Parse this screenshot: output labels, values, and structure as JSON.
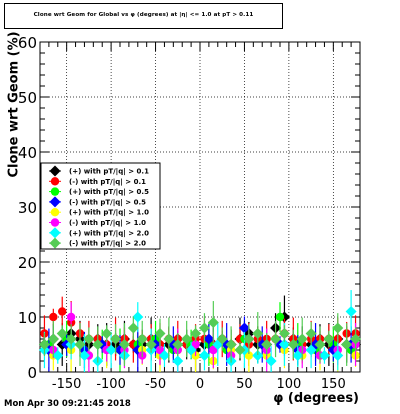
{
  "title": "Clone wrt Geom for Global vs φ (degrees) at |η| <= 1.0 at pT > 0.11",
  "footer": "Mon Apr 30 09:21:45 2018",
  "chart_data": {
    "type": "scatter",
    "title": "Clone wrt Geom for Global vs φ (degrees) at |η| <= 1.0 at pT > 0.11",
    "xlabel": "φ (degrees)",
    "ylabel": "Clone wrt Geom (%)",
    "xlim": [
      -180,
      180
    ],
    "ylim": [
      0,
      60
    ],
    "xticks": [
      -150,
      -100,
      -50,
      0,
      50,
      100,
      150
    ],
    "yticks": [
      0,
      10,
      20,
      30,
      40,
      50,
      60
    ],
    "grid": true,
    "legend_position": "left",
    "series": [
      {
        "name": "(+) with pT/|q| > 0.1",
        "color": "#000000",
        "marker": "diamond",
        "x": [
          -175,
          -165,
          -155,
          -145,
          -135,
          -125,
          -115,
          -105,
          -95,
          -85,
          -75,
          -65,
          -55,
          -45,
          -35,
          -25,
          -15,
          -5,
          5,
          15,
          25,
          35,
          45,
          55,
          65,
          75,
          85,
          95,
          105,
          115,
          125,
          135,
          145,
          155,
          165,
          175
        ],
        "y": [
          5,
          6,
          5,
          7,
          6,
          5,
          6,
          5,
          5,
          6,
          5,
          5,
          6,
          5,
          5,
          6,
          5,
          4,
          5,
          5,
          6,
          5,
          6,
          7,
          5,
          5,
          8,
          10,
          6,
          5,
          5,
          6,
          5,
          6,
          5,
          5
        ]
      },
      {
        "name": "(-) with pT/|q| > 0.1",
        "color": "#ff0000",
        "marker": "circle",
        "x": [
          -175,
          -165,
          -155,
          -145,
          -135,
          -125,
          -115,
          -105,
          -95,
          -85,
          -75,
          -65,
          -55,
          -45,
          -35,
          -25,
          -15,
          -5,
          5,
          15,
          25,
          35,
          45,
          55,
          65,
          75,
          85,
          95,
          105,
          115,
          125,
          135,
          145,
          155,
          165,
          175
        ],
        "y": [
          7,
          10,
          11,
          9,
          7,
          6,
          6,
          5,
          6,
          6,
          5,
          6,
          6,
          5,
          6,
          6,
          5,
          6,
          6,
          5,
          6,
          5,
          6,
          5,
          6,
          6,
          6,
          7,
          6,
          5,
          6,
          6,
          6,
          6,
          7,
          7
        ]
      },
      {
        "name": "(+) with pT/|q| > 0.5",
        "color": "#00ff00",
        "marker": "circle",
        "x": [
          -170,
          -150,
          -130,
          -110,
          -90,
          -70,
          -50,
          -30,
          -10,
          10,
          30,
          50,
          70,
          90,
          110,
          130,
          150,
          170
        ],
        "y": [
          5,
          6,
          4,
          5,
          4,
          5,
          6,
          4,
          5,
          5,
          4,
          6,
          5,
          10,
          5,
          4,
          5,
          4
        ]
      },
      {
        "name": "(-) with pT/|q| > 0.5",
        "color": "#0000ff",
        "marker": "diamond",
        "x": [
          -170,
          -150,
          -130,
          -110,
          -90,
          -70,
          -50,
          -30,
          -10,
          10,
          30,
          50,
          70,
          90,
          110,
          130,
          150,
          170
        ],
        "y": [
          4,
          5,
          4,
          5,
          4,
          4,
          5,
          5,
          4,
          6,
          5,
          8,
          5,
          5,
          4,
          5,
          4,
          5
        ]
      },
      {
        "name": "(+) with pT/|q| > 1.0",
        "color": "#ffff00",
        "marker": "circle",
        "x": [
          -165,
          -145,
          -125,
          -105,
          -85,
          -65,
          -45,
          -25,
          -5,
          15,
          35,
          55,
          75,
          95,
          115,
          135,
          155,
          175
        ],
        "y": [
          3,
          4,
          3,
          4,
          3,
          4,
          3,
          4,
          3,
          2,
          4,
          3,
          3,
          4,
          3,
          3,
          4,
          3
        ]
      },
      {
        "name": "(-) with pT/|q| > 1.0",
        "color": "#ff00ff",
        "marker": "circle",
        "x": [
          -165,
          -145,
          -125,
          -105,
          -85,
          -65,
          -45,
          -25,
          -5,
          15,
          35,
          55,
          75,
          95,
          115,
          135,
          155,
          175
        ],
        "y": [
          4,
          10,
          3,
          4,
          4,
          3,
          4,
          4,
          5,
          4,
          3,
          6,
          4,
          5,
          4,
          3,
          4,
          5
        ]
      },
      {
        "name": "(+) with pT/|q| > 2.0",
        "color": "#00ffff",
        "marker": "diamond",
        "x": [
          -175,
          -160,
          -145,
          -130,
          -115,
          -100,
          -85,
          -70,
          -55,
          -40,
          -25,
          -10,
          5,
          20,
          35,
          50,
          65,
          80,
          95,
          110,
          125,
          140,
          155,
          170
        ],
        "y": [
          4,
          3,
          5,
          3,
          2,
          4,
          3,
          10,
          4,
          3,
          2,
          4,
          3,
          5,
          2,
          4,
          3,
          2,
          5,
          3,
          4,
          3,
          3,
          11
        ]
      },
      {
        "name": "(-) with pT/|q| > 2.0",
        "color": "#55cc55",
        "marker": "diamond",
        "x": [
          -175,
          -165,
          -155,
          -145,
          -135,
          -125,
          -115,
          -105,
          -95,
          -85,
          -75,
          -65,
          -55,
          -45,
          -35,
          -25,
          -15,
          -5,
          5,
          15,
          25,
          35,
          45,
          55,
          65,
          75,
          85,
          95,
          105,
          115,
          125,
          135,
          145,
          155,
          165,
          175
        ],
        "y": [
          5,
          6,
          7,
          6,
          5,
          6,
          5,
          7,
          6,
          5,
          8,
          6,
          5,
          7,
          6,
          5,
          6,
          7,
          8,
          9,
          6,
          5,
          4,
          6,
          7,
          5,
          6,
          7,
          5,
          6,
          7,
          5,
          6,
          8,
          5,
          6
        ]
      }
    ]
  }
}
